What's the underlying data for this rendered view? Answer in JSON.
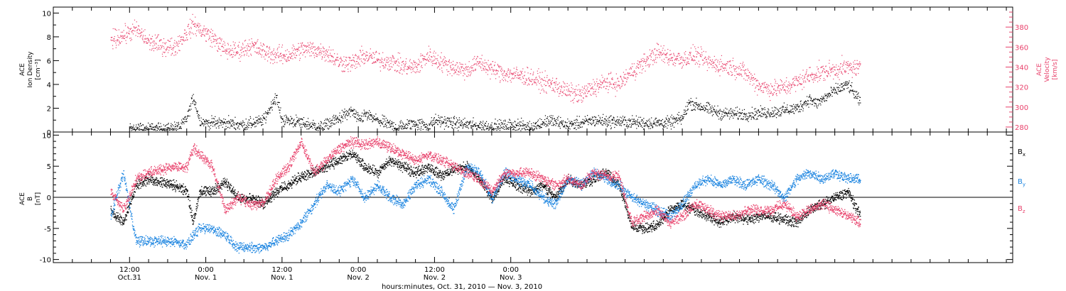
{
  "chart_data": [
    {
      "type": "scatter",
      "panel": "density-velocity",
      "left_axis": {
        "label_lines": [
          "ACE",
          "Ion Density",
          "[cm⁻³]"
        ],
        "range": [
          0,
          10.5
        ],
        "ticks": [
          0,
          2,
          4,
          6,
          8,
          10
        ],
        "tick_labels": [
          "0",
          "2",
          "4",
          "6",
          "8",
          "10"
        ]
      },
      "right_axis": {
        "label_lines": [
          "ACE",
          "Velocity",
          "[km/s]"
        ],
        "range": [
          275,
          400
        ],
        "ticks": [
          280,
          300,
          320,
          340,
          360,
          380
        ],
        "tick_labels": [
          "280",
          "300",
          "320",
          "340",
          "360",
          "380"
        ],
        "color": "#e8416b"
      },
      "series": [
        {
          "name": "",
          "axis": "left",
          "color": "#000000",
          "x": [
            3,
            6,
            9,
            11,
            12,
            13,
            14,
            15,
            18,
            21,
            24,
            26,
            27,
            28,
            30,
            33,
            36,
            38,
            39,
            40,
            42,
            45,
            48,
            50,
            51,
            54,
            57,
            60,
            64,
            66,
            69,
            72,
            74,
            76,
            80,
            84,
            88,
            90,
            91,
            96,
            100,
            104,
            108,
            110,
            111,
            114,
            116,
            118
          ],
          "y": [
            0.3,
            0.3,
            0.3,
            0.5,
            1.2,
            3.0,
            1.0,
            0.8,
            0.8,
            0.6,
            1.0,
            3.0,
            1.0,
            1.0,
            0.8,
            0.4,
            1.2,
            1.8,
            1.0,
            1.5,
            1.0,
            0.4,
            0.8,
            0.5,
            1.0,
            0.8,
            0.6,
            0.5,
            0.6,
            0.4,
            1.0,
            0.6,
            0.8,
            1.0,
            0.9,
            0.8,
            0.8,
            1.2,
            2.5,
            1.6,
            1.5,
            1.7,
            2.0,
            2.8,
            2.4,
            3.5,
            4.0,
            2.5
          ]
        },
        {
          "name": "",
          "axis": "right",
          "color": "#e8416b",
          "x": [
            0,
            2,
            4,
            6,
            8,
            10,
            12,
            13,
            14,
            16,
            18,
            20,
            22,
            24,
            26,
            28,
            30,
            32,
            34,
            36,
            38,
            40,
            42,
            44,
            46,
            48,
            50,
            52,
            54,
            56,
            58,
            60,
            62,
            64,
            66,
            68,
            70,
            72,
            74,
            76,
            78,
            80,
            82,
            84,
            86,
            88,
            90,
            92,
            94,
            96,
            98,
            100,
            102,
            104,
            106,
            108,
            110,
            112,
            114,
            116,
            118
          ],
          "y": [
            368,
            372,
            378,
            365,
            362,
            360,
            375,
            383,
            378,
            370,
            357,
            356,
            362,
            356,
            352,
            352,
            358,
            358,
            355,
            345,
            344,
            352,
            347,
            346,
            341,
            340,
            352,
            345,
            340,
            337,
            345,
            338,
            334,
            332,
            330,
            325,
            322,
            315,
            312,
            320,
            325,
            323,
            336,
            345,
            355,
            350,
            348,
            352,
            345,
            342,
            340,
            334,
            322,
            318,
            320,
            325,
            332,
            335,
            338,
            340,
            339
          ]
        }
      ]
    },
    {
      "type": "scatter",
      "panel": "magnetic-field",
      "left_axis": {
        "label_lines": [
          "ACE",
          "B",
          "[nT]"
        ],
        "range": [
          -10.5,
          10.5
        ],
        "ticks": [
          -10,
          -5,
          0,
          5,
          10
        ],
        "tick_labels": [
          "-10",
          "-5",
          "0",
          "5",
          "10"
        ]
      },
      "series": [
        {
          "name": "Bx",
          "color": "#000000",
          "x": [
            0,
            2,
            4,
            6,
            8,
            10,
            12,
            13,
            14,
            16,
            18,
            20,
            22,
            24,
            26,
            28,
            30,
            32,
            34,
            36,
            38,
            40,
            42,
            44,
            46,
            48,
            50,
            52,
            54,
            56,
            58,
            60,
            62,
            64,
            66,
            68,
            70,
            72,
            74,
            76,
            78,
            80,
            82,
            84,
            86,
            88,
            90,
            92,
            94,
            96,
            98,
            100,
            102,
            104,
            106,
            108,
            110,
            112,
            114,
            116,
            118
          ],
          "y": [
            -2,
            -4,
            2,
            3,
            2.5,
            2,
            1,
            -4,
            1,
            1,
            2.5,
            0,
            0,
            -1,
            1,
            2,
            3.5,
            4,
            5,
            6,
            7,
            5,
            4,
            6,
            5,
            4,
            5,
            3.5,
            4.5,
            5,
            3,
            0,
            3,
            2,
            1,
            2,
            0,
            3,
            2,
            3,
            4,
            2,
            -4.5,
            -5,
            -4.5,
            -2,
            -1,
            -2,
            -3,
            -4,
            -3,
            -3.5,
            -3,
            -3,
            -3.5,
            -4,
            -2,
            -1,
            0,
            1,
            -3
          ]
        },
        {
          "name": "By",
          "color": "#1b84e0",
          "x": [
            0,
            2,
            4,
            6,
            8,
            10,
            12,
            13,
            14,
            16,
            18,
            20,
            22,
            24,
            26,
            28,
            30,
            32,
            34,
            36,
            38,
            40,
            42,
            44,
            46,
            48,
            50,
            52,
            54,
            56,
            58,
            60,
            62,
            64,
            66,
            68,
            70,
            72,
            74,
            76,
            78,
            80,
            82,
            84,
            86,
            88,
            90,
            92,
            94,
            96,
            98,
            100,
            102,
            104,
            106,
            108,
            110,
            112,
            114,
            116,
            118
          ],
          "y": [
            -3,
            4,
            -7,
            -7,
            -7,
            -7,
            -7.5,
            -6,
            -5,
            -5,
            -6,
            -8,
            -8,
            -8,
            -7,
            -6,
            -4,
            -1,
            2,
            1,
            3,
            0,
            2,
            0,
            -1,
            2,
            3,
            1,
            -2,
            5,
            4,
            0,
            4,
            3,
            2,
            0,
            -1,
            3,
            2,
            4,
            3,
            2,
            0,
            -1,
            -2,
            -3,
            -1,
            2,
            3,
            2,
            3,
            2,
            3,
            2,
            0,
            3,
            4,
            3,
            4,
            3,
            3
          ]
        },
        {
          "name": "Bz",
          "color": "#e8416b",
          "x": [
            0,
            2,
            4,
            6,
            8,
            10,
            12,
            13,
            14,
            16,
            18,
            20,
            22,
            24,
            26,
            28,
            30,
            32,
            34,
            36,
            38,
            40,
            42,
            44,
            46,
            48,
            50,
            52,
            54,
            56,
            58,
            60,
            62,
            64,
            66,
            68,
            70,
            72,
            74,
            76,
            78,
            80,
            82,
            84,
            86,
            88,
            90,
            92,
            94,
            96,
            98,
            100,
            102,
            104,
            106,
            108,
            110,
            112,
            114,
            116,
            118
          ],
          "y": [
            1,
            -2,
            3,
            4,
            4.5,
            5,
            5,
            8,
            7,
            5,
            -2,
            0,
            -1,
            -1,
            3,
            5,
            9,
            4,
            6,
            8,
            9,
            8.5,
            9,
            8,
            7,
            6,
            7,
            6,
            5,
            4,
            3,
            1,
            4,
            4,
            4,
            3,
            2,
            3,
            2,
            4,
            3.5,
            3.5,
            -4,
            -3,
            -2,
            -4,
            -3,
            -1,
            -2,
            -3,
            -3,
            -2,
            -2,
            -2,
            -1,
            -3,
            -2,
            -1,
            -2,
            -3,
            -4
          ]
        }
      ],
      "legend": [
        "Bx",
        "By",
        "Bz"
      ]
    }
  ],
  "x_axis": {
    "range": [
      -9,
      142
    ],
    "minor_tick_step": 3,
    "major_ticks": [
      {
        "x": 3,
        "time": "12:00",
        "date": "Oct.31"
      },
      {
        "x": 15,
        "time": "0:00",
        "date": "Nov. 1"
      },
      {
        "x": 27,
        "time": "12:00",
        "date": "Nov. 1"
      },
      {
        "x": 39,
        "time": "0:00",
        "date": "Nov. 2"
      },
      {
        "x": 51,
        "time": "12:00",
        "date": "Nov. 2"
      },
      {
        "x": 63,
        "time": "0:00",
        "date": "Nov. 3"
      }
    ],
    "title": "hours:minutes, Oct. 31, 2010 — Nov.  3, 2010"
  },
  "legend_labels": [
    {
      "base": "B",
      "sub": "x",
      "color": "#000000"
    },
    {
      "base": "B",
      "sub": "y",
      "color": "#1b84e0"
    },
    {
      "base": "B",
      "sub": "z",
      "color": "#e8416b"
    }
  ]
}
